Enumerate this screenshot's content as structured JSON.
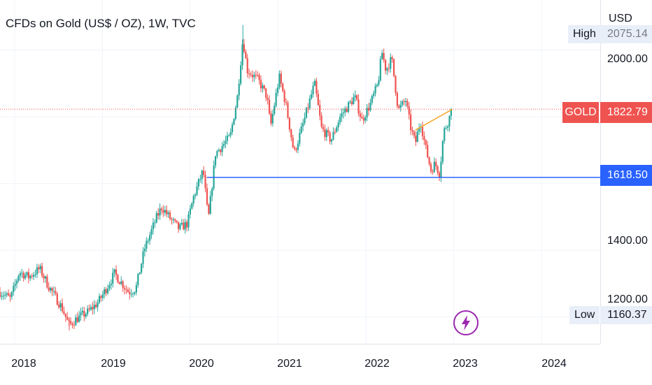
{
  "header": {
    "title": "CFDs on Gold (US$ / OZ), 1W, TVC"
  },
  "price_axis": {
    "currency": "USD",
    "labels": [
      "2000.00",
      "1400.00",
      "1200.00"
    ]
  },
  "time_axis": {
    "labels": [
      "2018",
      "2019",
      "2020",
      "2021",
      "2022",
      "2023",
      "2024"
    ]
  },
  "markers": {
    "high_label": "High",
    "high_value": "2075.14",
    "low_label": "Low",
    "low_value": "1160.37",
    "symbol": "GOLD",
    "last_price": "1822.79",
    "hline_price": "1618.50"
  },
  "icons": {
    "event": "lightning-bolt-icon"
  },
  "colors": {
    "up": "#26a69a",
    "down": "#ef5350",
    "hline": "#2962ff",
    "trendline": "#f5a623",
    "event": "#9c27b0"
  },
  "chart_data": {
    "type": "candlestick",
    "title": "CFDs on Gold (US$ / OZ), 1W, TVC",
    "xlabel": "",
    "ylabel": "",
    "x_range": [
      "2017-11-01",
      "2024-09-01"
    ],
    "ylim": [
      1120,
      2150
    ],
    "y_ticks": [
      1200,
      1400,
      2000
    ],
    "x_ticks": [
      "2018",
      "2019",
      "2020",
      "2021",
      "2022",
      "2023",
      "2024"
    ],
    "high": 2075.14,
    "low": 1160.37,
    "last": 1822.79,
    "horizontal_line": 1618.5,
    "trendline": {
      "from": [
        "2022-07-25",
        1760
      ],
      "to": [
        "2022-12-26",
        1822.79
      ]
    },
    "series_anchors": [
      [
        "2017-11-01",
        1275
      ],
      [
        "2017-12-15",
        1255
      ],
      [
        "2018-01-20",
        1335
      ],
      [
        "2018-03-01",
        1320
      ],
      [
        "2018-04-15",
        1345
      ],
      [
        "2018-05-20",
        1295
      ],
      [
        "2018-07-15",
        1230
      ],
      [
        "2018-08-16",
        1175
      ],
      [
        "2018-09-15",
        1195
      ],
      [
        "2018-11-01",
        1215
      ],
      [
        "2018-12-15",
        1245
      ],
      [
        "2019-01-20",
        1290
      ],
      [
        "2019-02-20",
        1330
      ],
      [
        "2019-04-20",
        1275
      ],
      [
        "2019-05-20",
        1285
      ],
      [
        "2019-06-25",
        1405
      ],
      [
        "2019-08-15",
        1500
      ],
      [
        "2019-09-05",
        1530
      ],
      [
        "2019-10-15",
        1490
      ],
      [
        "2019-11-15",
        1465
      ],
      [
        "2019-12-20",
        1480
      ],
      [
        "2020-01-15",
        1560
      ],
      [
        "2020-02-24",
        1640
      ],
      [
        "2020-03-16",
        1490
      ],
      [
        "2020-04-15",
        1690
      ],
      [
        "2020-06-15",
        1740
      ],
      [
        "2020-07-15",
        1860
      ],
      [
        "2020-08-07",
        2035
      ],
      [
        "2020-08-25",
        1940
      ],
      [
        "2020-10-10",
        1910
      ],
      [
        "2020-11-15",
        1860
      ],
      [
        "2020-11-30",
        1770
      ],
      [
        "2021-01-05",
        1920
      ],
      [
        "2021-02-01",
        1840
      ],
      [
        "2021-03-08",
        1690
      ],
      [
        "2021-04-15",
        1780
      ],
      [
        "2021-06-01",
        1900
      ],
      [
        "2021-06-30",
        1765
      ],
      [
        "2021-08-09",
        1730
      ],
      [
        "2021-09-15",
        1800
      ],
      [
        "2021-11-15",
        1860
      ],
      [
        "2021-12-15",
        1790
      ],
      [
        "2022-01-20",
        1840
      ],
      [
        "2022-02-20",
        1900
      ],
      [
        "2022-03-08",
        1995
      ],
      [
        "2022-03-25",
        1940
      ],
      [
        "2022-04-18",
        1975
      ],
      [
        "2022-05-15",
        1820
      ],
      [
        "2022-06-15",
        1850
      ],
      [
        "2022-07-05",
        1770
      ],
      [
        "2022-07-25",
        1720
      ],
      [
        "2022-08-15",
        1790
      ],
      [
        "2022-09-05",
        1710
      ],
      [
        "2022-09-28",
        1640
      ],
      [
        "2022-10-15",
        1660
      ],
      [
        "2022-11-03",
        1630
      ],
      [
        "2022-11-20",
        1755
      ],
      [
        "2022-12-10",
        1790
      ],
      [
        "2022-12-26",
        1822.79
      ]
    ]
  }
}
